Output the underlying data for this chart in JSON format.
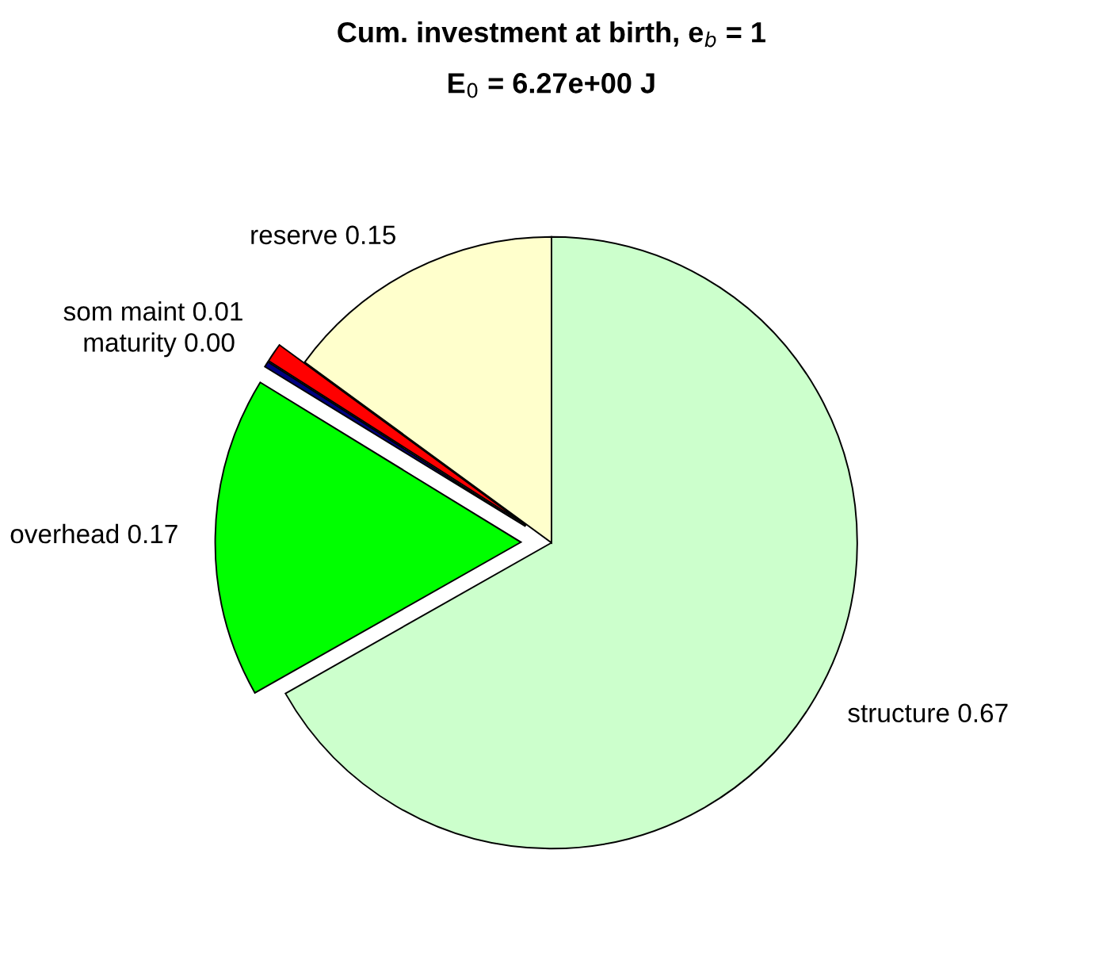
{
  "chart_data": {
    "type": "pie",
    "title": "Cum. investment at birth, e$_{b}$ = 1",
    "subtitle": "E$_{0}$ = 6.27e+00 J",
    "categories": [
      "structure",
      "overhead",
      "maturity",
      "som maint",
      "reserve"
    ],
    "values": [
      0.67,
      0.17,
      0.003,
      0.01,
      0.15
    ],
    "value_labels": [
      "0.67",
      "0.17",
      "0.00",
      "0.01",
      "0.15"
    ],
    "colors": [
      "#ccffcc",
      "#00ff00",
      "#000080",
      "#ff0000",
      "#ffffcc"
    ]
  }
}
